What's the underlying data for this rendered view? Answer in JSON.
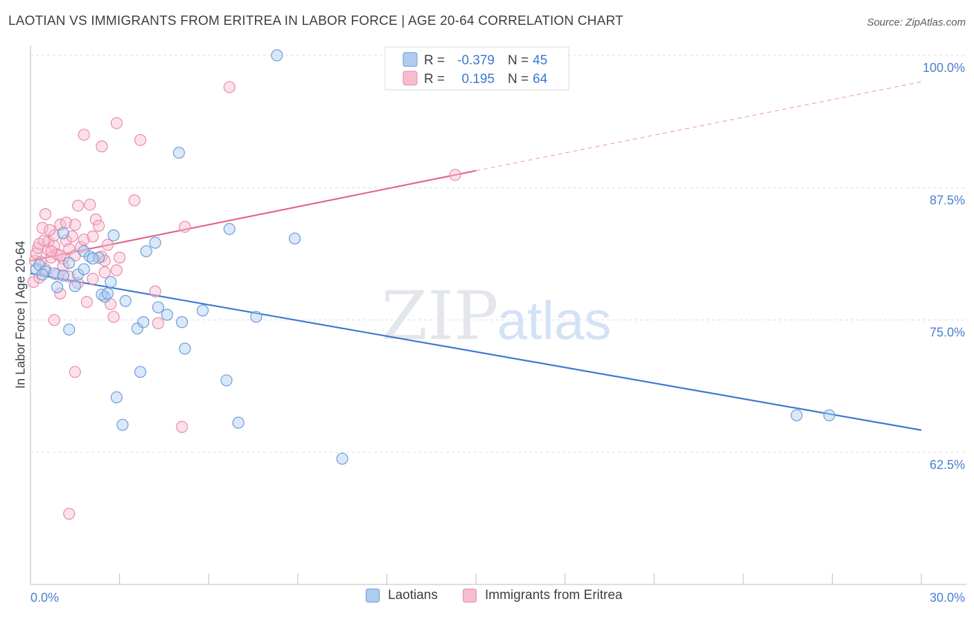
{
  "title": "LAOTIAN VS IMMIGRANTS FROM ERITREA IN LABOR FORCE | AGE 20-64 CORRELATION CHART",
  "source": "Source: ZipAtlas.com",
  "watermark": {
    "zip": "ZIP",
    "atlas": "atlas"
  },
  "colors": {
    "blue_fill": "#aecbf0",
    "blue_stroke": "#6a9bd8",
    "blue_line": "#3a78d0",
    "pink_fill": "#f7bccf",
    "pink_stroke": "#e98aa9",
    "pink_line": "#e0668e",
    "axis_text": "#4a7fd0",
    "grid": "#d8dde6"
  },
  "legend_box": {
    "rows": [
      {
        "r_label": "R =",
        "r_value": "-0.379",
        "n_label": "N =",
        "n_value": "45"
      },
      {
        "r_label": "R =",
        "r_value": "0.195",
        "n_label": "N =",
        "n_value": "64"
      }
    ]
  },
  "legend_bottom": {
    "items": [
      "Laotians",
      "Immigrants from Eritrea"
    ]
  },
  "chart_data": {
    "type": "scatter",
    "title": "LAOTIAN VS IMMIGRANTS FROM ERITREA IN LABOR FORCE | AGE 20-64 CORRELATION CHART",
    "xlabel": "",
    "ylabel": "In Labor Force | Age 20-64",
    "xlim": [
      0,
      30
    ],
    "ylim": [
      50,
      102
    ],
    "x_tick_labels": [
      "0.0%",
      "30.0%"
    ],
    "y_ticks": [
      62.5,
      75.0,
      87.5,
      100.0
    ],
    "y_tick_labels": [
      "62.5%",
      "75.0%",
      "87.5%",
      "100.0%"
    ],
    "grid": true,
    "series": [
      {
        "name": "Laotians",
        "color": "#6a9bd8",
        "r": -0.379,
        "n": 45,
        "trend": {
          "x": [
            0.0,
            30.0
          ],
          "y": [
            79.4,
            64.6
          ],
          "dashed_from": null
        },
        "points": [
          [
            0.2,
            79.8
          ],
          [
            0.3,
            80.2
          ],
          [
            0.5,
            79.6
          ],
          [
            0.4,
            79.3
          ],
          [
            0.8,
            79.4
          ],
          [
            0.9,
            78.1
          ],
          [
            1.1,
            79.2
          ],
          [
            1.3,
            80.4
          ],
          [
            1.5,
            78.2
          ],
          [
            1.6,
            79.3
          ],
          [
            1.8,
            81.5
          ],
          [
            2.0,
            81.0
          ],
          [
            2.3,
            80.9
          ],
          [
            2.5,
            77.2
          ],
          [
            2.4,
            77.4
          ],
          [
            2.6,
            77.5
          ],
          [
            2.7,
            78.6
          ],
          [
            2.8,
            83.0
          ],
          [
            3.2,
            76.8
          ],
          [
            1.3,
            74.1
          ],
          [
            3.6,
            74.2
          ],
          [
            3.8,
            74.8
          ],
          [
            3.9,
            81.5
          ],
          [
            4.2,
            82.3
          ],
          [
            4.3,
            76.2
          ],
          [
            4.6,
            75.5
          ],
          [
            5.1,
            74.8
          ],
          [
            5.0,
            90.8
          ],
          [
            5.2,
            72.3
          ],
          [
            5.8,
            75.9
          ],
          [
            6.7,
            83.6
          ],
          [
            6.6,
            69.3
          ],
          [
            7.6,
            75.3
          ],
          [
            8.3,
            100.0
          ],
          [
            8.9,
            82.7
          ],
          [
            3.7,
            70.1
          ],
          [
            2.9,
            67.7
          ],
          [
            3.1,
            65.1
          ],
          [
            7.0,
            65.3
          ],
          [
            10.5,
            61.9
          ],
          [
            25.8,
            66.0
          ],
          [
            26.9,
            66.0
          ],
          [
            1.1,
            83.2
          ],
          [
            1.8,
            79.8
          ],
          [
            2.1,
            80.8
          ]
        ]
      },
      {
        "name": "Immigrants from Eritrea",
        "color": "#e98aa9",
        "r": 0.195,
        "n": 64,
        "trend": {
          "x": [
            0.0,
            15.0
          ],
          "y": [
            80.6,
            89.1
          ],
          "dashed_to": [
            30.0,
            97.5
          ]
        },
        "points": [
          [
            0.1,
            78.6
          ],
          [
            0.15,
            80.6
          ],
          [
            0.2,
            81.3
          ],
          [
            0.25,
            81.8
          ],
          [
            0.3,
            82.2
          ],
          [
            0.35,
            80.5
          ],
          [
            0.4,
            83.7
          ],
          [
            0.5,
            79.8
          ],
          [
            0.5,
            85.0
          ],
          [
            0.6,
            81.6
          ],
          [
            0.6,
            82.4
          ],
          [
            0.7,
            80.9
          ],
          [
            0.8,
            82.0
          ],
          [
            0.8,
            83.0
          ],
          [
            0.9,
            79.3
          ],
          [
            0.9,
            81.2
          ],
          [
            1.0,
            84.0
          ],
          [
            1.0,
            77.5
          ],
          [
            1.1,
            80.8
          ],
          [
            1.2,
            82.5
          ],
          [
            1.2,
            84.2
          ],
          [
            1.3,
            81.7
          ],
          [
            1.3,
            79.1
          ],
          [
            1.4,
            82.9
          ],
          [
            1.5,
            81.1
          ],
          [
            1.5,
            84.0
          ],
          [
            1.6,
            85.8
          ],
          [
            1.7,
            81.9
          ],
          [
            1.8,
            82.6
          ],
          [
            1.9,
            76.7
          ],
          [
            2.0,
            85.9
          ],
          [
            2.1,
            82.9
          ],
          [
            2.2,
            84.5
          ],
          [
            2.3,
            83.9
          ],
          [
            2.4,
            81.0
          ],
          [
            2.5,
            80.6
          ],
          [
            2.6,
            82.1
          ],
          [
            2.7,
            76.5
          ],
          [
            2.8,
            75.3
          ],
          [
            2.9,
            79.7
          ],
          [
            3.0,
            80.9
          ],
          [
            1.8,
            92.5
          ],
          [
            2.4,
            91.4
          ],
          [
            2.9,
            93.6
          ],
          [
            3.7,
            92.0
          ],
          [
            3.5,
            86.3
          ],
          [
            4.2,
            77.7
          ],
          [
            4.3,
            74.7
          ],
          [
            5.2,
            83.8
          ],
          [
            6.7,
            97.0
          ],
          [
            5.1,
            64.9
          ],
          [
            1.5,
            70.1
          ],
          [
            1.3,
            56.7
          ],
          [
            14.3,
            88.7
          ],
          [
            0.8,
            75.0
          ],
          [
            1.1,
            80.1
          ],
          [
            0.45,
            82.5
          ],
          [
            0.65,
            83.5
          ],
          [
            2.1,
            78.9
          ],
          [
            1.0,
            81.1
          ],
          [
            0.3,
            79.0
          ],
          [
            1.6,
            78.5
          ],
          [
            2.5,
            79.5
          ],
          [
            0.7,
            81.5
          ]
        ]
      }
    ]
  }
}
